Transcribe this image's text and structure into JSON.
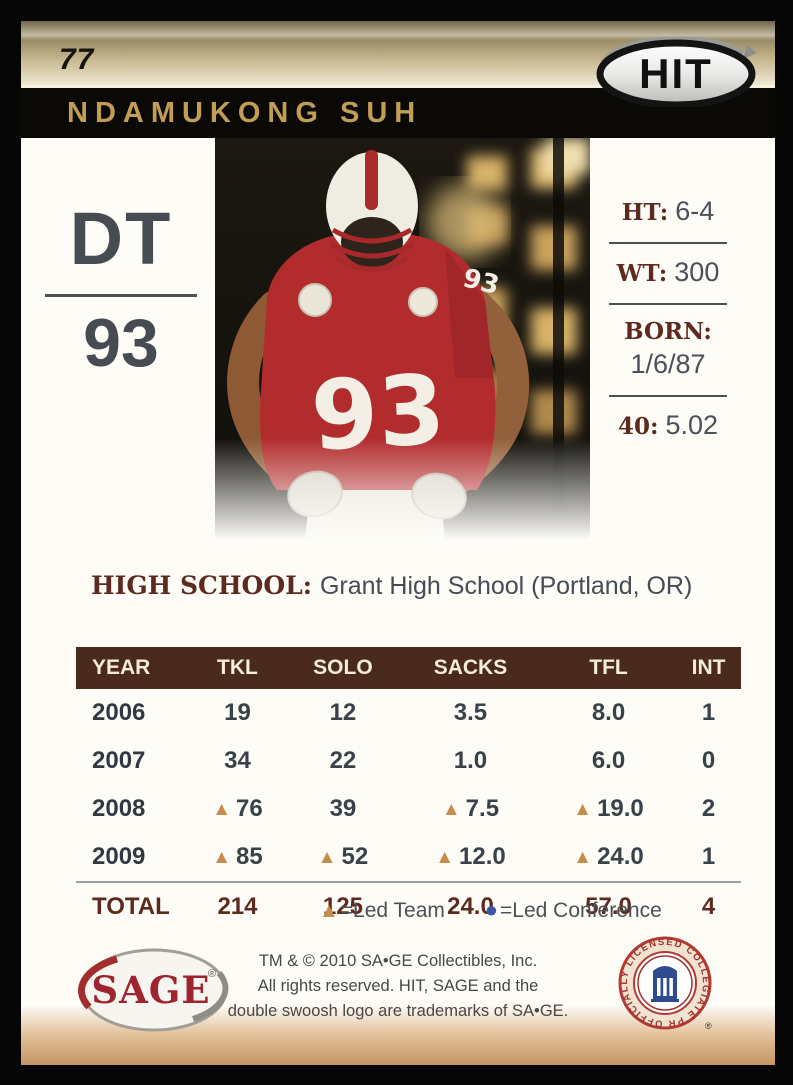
{
  "card": {
    "number": "77",
    "brand": "HIT",
    "player_name": "NDAMUKONG SUH",
    "position": "DT",
    "jersey_number": "93"
  },
  "photo": {
    "jersey_number": "93",
    "sleeve_number": "93"
  },
  "vitals": {
    "height": {
      "label": "HT:",
      "value": "6-4"
    },
    "weight": {
      "label": "WT:",
      "value": "300"
    },
    "born": {
      "label": "BORN:",
      "value": "1/6/87"
    },
    "forty": {
      "label": "40:",
      "value": "5.02"
    }
  },
  "high_school": {
    "label": "HIGH SCHOOL:",
    "value": "Grant High School (Portland, OR)"
  },
  "stats": {
    "headers": [
      "YEAR",
      "TKL",
      "SOLO",
      "SACKS",
      "TFL",
      "INT"
    ],
    "rows": [
      {
        "year": "2006",
        "cells": [
          {
            "v": "19"
          },
          {
            "v": "12"
          },
          {
            "v": "3.5"
          },
          {
            "v": "8.0"
          },
          {
            "v": "1"
          }
        ]
      },
      {
        "year": "2007",
        "cells": [
          {
            "v": "34"
          },
          {
            "v": "22"
          },
          {
            "v": "1.0"
          },
          {
            "v": "6.0"
          },
          {
            "v": "0"
          }
        ]
      },
      {
        "year": "2008",
        "cells": [
          {
            "v": "76",
            "led": "team"
          },
          {
            "v": "39"
          },
          {
            "v": "7.5",
            "led": "team"
          },
          {
            "v": "19.0",
            "led": "team"
          },
          {
            "v": "2"
          }
        ]
      },
      {
        "year": "2009",
        "cells": [
          {
            "v": "85",
            "led": "team"
          },
          {
            "v": "52",
            "led": "team"
          },
          {
            "v": "12.0",
            "led": "team"
          },
          {
            "v": "24.0",
            "led": "team"
          },
          {
            "v": "1"
          }
        ]
      },
      {
        "year": "TOTAL",
        "total": true,
        "cells": [
          {
            "v": "214"
          },
          {
            "v": "125"
          },
          {
            "v": "24.0"
          },
          {
            "v": "57.0"
          },
          {
            "v": "4"
          }
        ]
      }
    ]
  },
  "legend": {
    "team_symbol": "▲",
    "team_label": "=Led Team",
    "conference_symbol": "●",
    "conference_label": "=Led Conference"
  },
  "footer": {
    "sage_logo": "SAGE",
    "copyright_lines": [
      "TM & © 2010 SA•GE Collectibles, Inc.",
      "All rights reserved. HIT, SAGE and the",
      "double swoosh logo are trademarks of SA•GE."
    ],
    "seal_text": "OFFICIALLY LICENSED COLLEGIATE PRODUCTS"
  },
  "colors": {
    "accent_gold": "#c19d56",
    "maroon": "#5e2a1f",
    "table_header_bg": "#4a2a1c",
    "led_team_triangle": "#c68c4c",
    "led_conference_dot": "#3a57a5"
  }
}
